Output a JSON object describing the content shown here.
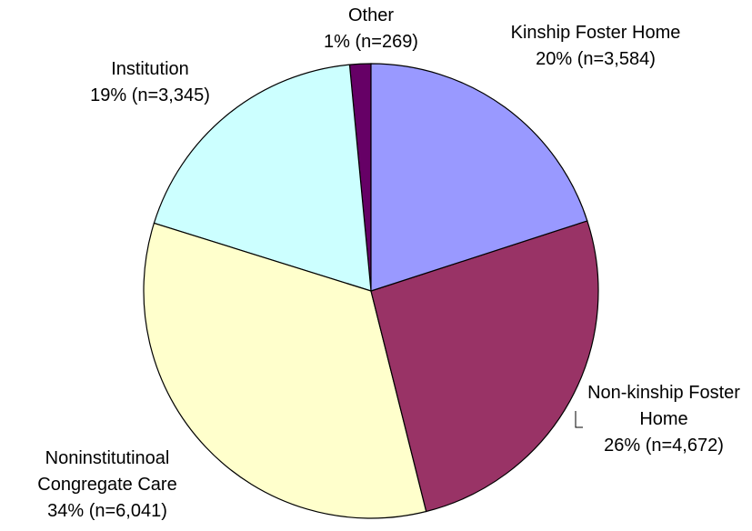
{
  "chart_data": {
    "type": "pie",
    "categories": [
      "Kinship Foster Home",
      "Non-kinship Foster Home",
      "Noninstitutinoal Congregate Care",
      "Institution",
      "Other"
    ],
    "values": [
      3584,
      4672,
      6041,
      3345,
      269
    ],
    "value_labels": [
      "20% (n=3,584)",
      "26% (n=4,672)",
      "34% (n=6,041)",
      "19% (n=3,345)",
      "1% (n=269)"
    ],
    "colors": [
      "#9999ff",
      "#993366",
      "#ffffcc",
      "#ccffff",
      "#660066"
    ]
  }
}
